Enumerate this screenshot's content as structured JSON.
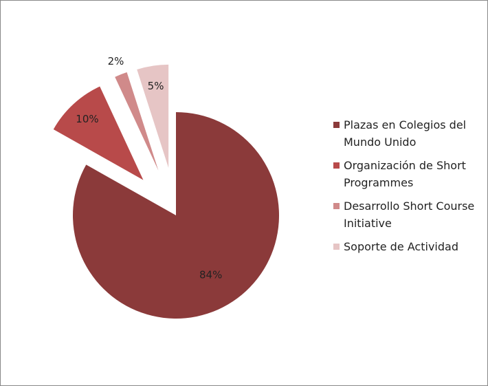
{
  "chart_data": {
    "type": "pie",
    "categories": [
      "Plazas en Colegios del Mundo Unido",
      "Organización de Short Programmes",
      "Desarrollo Short Course Initiative",
      "Soporte de Actividad"
    ],
    "values": [
      84,
      10,
      2,
      5
    ],
    "value_labels": [
      "84%",
      "10%",
      "2%",
      "5%"
    ],
    "colors": [
      "#8b3a3a",
      "#b84a4a",
      "#d08a8a",
      "#e6c5c5"
    ],
    "legend": "right"
  }
}
